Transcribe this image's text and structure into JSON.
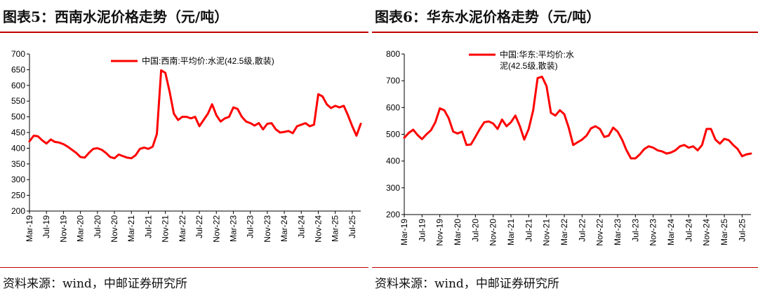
{
  "left": {
    "title": "图表5：西南水泥价格走势（元/吨）",
    "source": "资料来源：wind，中邮证券研究所",
    "chart_data": {
      "type": "line",
      "legend": [
        "中国:西南:平均价:水泥(42.5级,散装)"
      ],
      "ylim": [
        200,
        700
      ],
      "yticks": [
        200,
        250,
        300,
        350,
        400,
        450,
        500,
        550,
        600,
        650,
        700
      ],
      "xticks": [
        "Mar-19",
        "Jul-19",
        "Nov-19",
        "Mar-20",
        "Jul-20",
        "Nov-20",
        "Mar-21",
        "Jul-21",
        "Nov-21",
        "Mar-22",
        "Jul-22",
        "Nov-22",
        "Mar-23",
        "Jul-23",
        "Nov-23",
        "Mar-24",
        "Jul-24",
        "Nov-24",
        "Mar-25",
        "Jul-25"
      ],
      "x_range": [
        "2019-03",
        "2025-09"
      ],
      "grid": false,
      "legend_position": "top",
      "series": [
        {
          "name": "中国:西南:平均价:水泥(42.5级,散装)",
          "color": "#ff0000",
          "points": [
            [
              "2019-03",
              422
            ],
            [
              "2019-04",
              440
            ],
            [
              "2019-05",
              438
            ],
            [
              "2019-06",
              425
            ],
            [
              "2019-07",
              415
            ],
            [
              "2019-08",
              428
            ],
            [
              "2019-09",
              420
            ],
            [
              "2019-10",
              418
            ],
            [
              "2019-11",
              413
            ],
            [
              "2019-12",
              405
            ],
            [
              "2020-01",
              395
            ],
            [
              "2020-02",
              385
            ],
            [
              "2020-03",
              372
            ],
            [
              "2020-04",
              370
            ],
            [
              "2020-05",
              385
            ],
            [
              "2020-06",
              398
            ],
            [
              "2020-07",
              400
            ],
            [
              "2020-08",
              395
            ],
            [
              "2020-09",
              385
            ],
            [
              "2020-10",
              372
            ],
            [
              "2020-11",
              368
            ],
            [
              "2020-12",
              380
            ],
            [
              "2021-01",
              375
            ],
            [
              "2021-02",
              370
            ],
            [
              "2021-03",
              368
            ],
            [
              "2021-04",
              378
            ],
            [
              "2021-05",
              398
            ],
            [
              "2021-06",
              402
            ],
            [
              "2021-07",
              398
            ],
            [
              "2021-08",
              405
            ],
            [
              "2021-09",
              445
            ],
            [
              "2021-10",
              648
            ],
            [
              "2021-11",
              640
            ],
            [
              "2021-12",
              580
            ],
            [
              "2022-01",
              510
            ],
            [
              "2022-02",
              490
            ],
            [
              "2022-03",
              500
            ],
            [
              "2022-04",
              500
            ],
            [
              "2022-05",
              495
            ],
            [
              "2022-06",
              500
            ],
            [
              "2022-07",
              470
            ],
            [
              "2022-08",
              490
            ],
            [
              "2022-09",
              510
            ],
            [
              "2022-10",
              540
            ],
            [
              "2022-11",
              505
            ],
            [
              "2022-12",
              485
            ],
            [
              "2023-01",
              495
            ],
            [
              "2023-02",
              500
            ],
            [
              "2023-03",
              530
            ],
            [
              "2023-04",
              525
            ],
            [
              "2023-05",
              500
            ],
            [
              "2023-06",
              485
            ],
            [
              "2023-07",
              480
            ],
            [
              "2023-08",
              472
            ],
            [
              "2023-09",
              480
            ],
            [
              "2023-10",
              460
            ],
            [
              "2023-11",
              478
            ],
            [
              "2023-12",
              480
            ],
            [
              "2024-01",
              460
            ],
            [
              "2024-02",
              450
            ],
            [
              "2024-03",
              452
            ],
            [
              "2024-04",
              455
            ],
            [
              "2024-05",
              448
            ],
            [
              "2024-06",
              470
            ],
            [
              "2024-07",
              475
            ],
            [
              "2024-08",
              480
            ],
            [
              "2024-09",
              470
            ],
            [
              "2024-10",
              475
            ],
            [
              "2024-11",
              572
            ],
            [
              "2024-12",
              565
            ],
            [
              "2025-01",
              540
            ],
            [
              "2025-02",
              528
            ],
            [
              "2025-03",
              535
            ],
            [
              "2025-04",
              530
            ],
            [
              "2025-05",
              535
            ],
            [
              "2025-06",
              505
            ],
            [
              "2025-07",
              470
            ],
            [
              "2025-08",
              440
            ],
            [
              "2025-09",
              478
            ]
          ]
        }
      ]
    }
  },
  "right": {
    "title": "图表6：华东水泥价格走势（元/吨）",
    "source": "资料来源：wind，中邮证券研究所",
    "chart_data": {
      "type": "line",
      "legend": [
        "中国:华东:平均价:水泥(42.5级,散装)"
      ],
      "legend_lines": [
        "中国:华东:平均价:水",
        "泥(42.5级,散装)"
      ],
      "ylim": [
        200,
        800
      ],
      "yticks": [
        200,
        300,
        400,
        500,
        600,
        700,
        800
      ],
      "xticks": [
        "Mar-19",
        "Jul-19",
        "Nov-19",
        "Mar-20",
        "Jul-20",
        "Nov-20",
        "Mar-21",
        "Jul-21",
        "Nov-21",
        "Mar-22",
        "Jul-22",
        "Nov-22",
        "Mar-23",
        "Jul-23",
        "Nov-23",
        "Mar-24",
        "Jul-24",
        "Nov-24",
        "Mar-25",
        "Jul-25"
      ],
      "x_range": [
        "2019-03",
        "2025-09"
      ],
      "grid": false,
      "legend_position": "top",
      "series": [
        {
          "name": "中国:华东:平均价:水泥(42.5级,散装)",
          "color": "#ff0000",
          "points": [
            [
              "2019-03",
              487
            ],
            [
              "2019-04",
              505
            ],
            [
              "2019-05",
              517
            ],
            [
              "2019-06",
              497
            ],
            [
              "2019-07",
              482
            ],
            [
              "2019-08",
              500
            ],
            [
              "2019-09",
              515
            ],
            [
              "2019-10",
              545
            ],
            [
              "2019-11",
              597
            ],
            [
              "2019-12",
              590
            ],
            [
              "2020-01",
              560
            ],
            [
              "2020-02",
              510
            ],
            [
              "2020-03",
              503
            ],
            [
              "2020-04",
              510
            ],
            [
              "2020-05",
              460
            ],
            [
              "2020-06",
              462
            ],
            [
              "2020-07",
              490
            ],
            [
              "2020-08",
              520
            ],
            [
              "2020-09",
              545
            ],
            [
              "2020-10",
              548
            ],
            [
              "2020-11",
              540
            ],
            [
              "2020-12",
              520
            ],
            [
              "2021-01",
              555
            ],
            [
              "2021-02",
              530
            ],
            [
              "2021-03",
              545
            ],
            [
              "2021-04",
              570
            ],
            [
              "2021-05",
              530
            ],
            [
              "2021-06",
              480
            ],
            [
              "2021-07",
              520
            ],
            [
              "2021-08",
              590
            ],
            [
              "2021-09",
              710
            ],
            [
              "2021-10",
              715
            ],
            [
              "2021-11",
              680
            ],
            [
              "2021-12",
              580
            ],
            [
              "2022-01",
              570
            ],
            [
              "2022-02",
              590
            ],
            [
              "2022-03",
              575
            ],
            [
              "2022-04",
              525
            ],
            [
              "2022-05",
              460
            ],
            [
              "2022-06",
              470
            ],
            [
              "2022-07",
              480
            ],
            [
              "2022-08",
              495
            ],
            [
              "2022-09",
              522
            ],
            [
              "2022-10",
              530
            ],
            [
              "2022-11",
              520
            ],
            [
              "2022-12",
              490
            ],
            [
              "2023-01",
              495
            ],
            [
              "2023-02",
              525
            ],
            [
              "2023-03",
              510
            ],
            [
              "2023-04",
              480
            ],
            [
              "2023-05",
              440
            ],
            [
              "2023-06",
              410
            ],
            [
              "2023-07",
              410
            ],
            [
              "2023-08",
              425
            ],
            [
              "2023-09",
              445
            ],
            [
              "2023-10",
              455
            ],
            [
              "2023-11",
              450
            ],
            [
              "2023-12",
              440
            ],
            [
              "2024-01",
              436
            ],
            [
              "2024-02",
              428
            ],
            [
              "2024-03",
              432
            ],
            [
              "2024-04",
              440
            ],
            [
              "2024-05",
              455
            ],
            [
              "2024-06",
              460
            ],
            [
              "2024-07",
              450
            ],
            [
              "2024-08",
              455
            ],
            [
              "2024-09",
              440
            ],
            [
              "2024-10",
              460
            ],
            [
              "2024-11",
              520
            ],
            [
              "2024-12",
              520
            ],
            [
              "2025-01",
              480
            ],
            [
              "2025-02",
              465
            ],
            [
              "2025-03",
              483
            ],
            [
              "2025-04",
              478
            ],
            [
              "2025-05",
              460
            ],
            [
              "2025-06",
              445
            ],
            [
              "2025-07",
              418
            ],
            [
              "2025-08",
              425
            ],
            [
              "2025-09",
              428
            ]
          ]
        }
      ]
    }
  }
}
